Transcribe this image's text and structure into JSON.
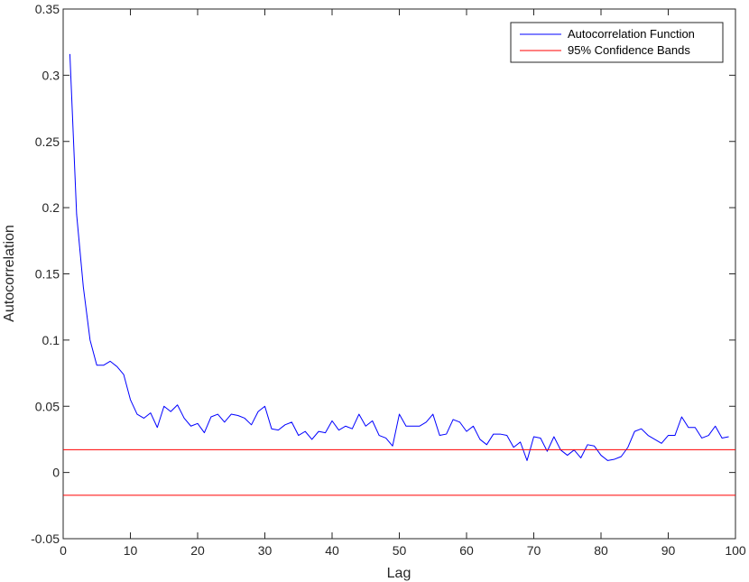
{
  "chart_data": {
    "type": "line",
    "title": "",
    "xlabel": "Lag",
    "ylabel": "Autocorrelation",
    "xlim": [
      0,
      100
    ],
    "ylim": [
      -0.05,
      0.35
    ],
    "grid": false,
    "legend_position": "top-right",
    "x_ticks": [
      0,
      10,
      20,
      30,
      40,
      50,
      60,
      70,
      80,
      90,
      100
    ],
    "x_tick_labels": [
      "0",
      "10",
      "20",
      "30",
      "40",
      "50",
      "60",
      "70",
      "80",
      "90",
      "100"
    ],
    "y_ticks": [
      -0.05,
      0,
      0.05,
      0.1,
      0.15,
      0.2,
      0.25,
      0.3,
      0.35
    ],
    "y_tick_labels": [
      "-0.05",
      "0",
      "0.05",
      "0.1",
      "0.15",
      "0.2",
      "0.25",
      "0.3",
      "0.35"
    ],
    "series": [
      {
        "name": "Autocorrelation Function",
        "color": "#0000ff",
        "x": [
          1,
          2,
          3,
          4,
          5,
          6,
          7,
          8,
          9,
          10,
          11,
          12,
          13,
          14,
          15,
          16,
          17,
          18,
          19,
          20,
          21,
          22,
          23,
          24,
          25,
          26,
          27,
          28,
          29,
          30,
          31,
          32,
          33,
          34,
          35,
          36,
          37,
          38,
          39,
          40,
          41,
          42,
          43,
          44,
          45,
          46,
          47,
          48,
          49,
          50,
          51,
          52,
          53,
          54,
          55,
          56,
          57,
          58,
          59,
          60,
          61,
          62,
          63,
          64,
          65,
          66,
          67,
          68,
          69,
          70,
          71,
          72,
          73,
          74,
          75,
          76,
          77,
          78,
          79,
          80,
          81,
          82,
          83,
          84,
          85,
          86,
          87,
          88,
          89,
          90,
          91,
          92,
          93,
          94,
          95,
          96,
          97,
          98,
          99
        ],
        "y": [
          0.316,
          0.195,
          0.14,
          0.1,
          0.081,
          0.081,
          0.084,
          0.08,
          0.074,
          0.055,
          0.044,
          0.041,
          0.045,
          0.034,
          0.05,
          0.046,
          0.051,
          0.041,
          0.035,
          0.037,
          0.03,
          0.042,
          0.044,
          0.038,
          0.044,
          0.043,
          0.041,
          0.036,
          0.046,
          0.05,
          0.033,
          0.032,
          0.036,
          0.038,
          0.028,
          0.031,
          0.025,
          0.031,
          0.03,
          0.039,
          0.032,
          0.035,
          0.033,
          0.044,
          0.035,
          0.039,
          0.028,
          0.026,
          0.02,
          0.044,
          0.035,
          0.035,
          0.035,
          0.038,
          0.044,
          0.028,
          0.029,
          0.04,
          0.038,
          0.031,
          0.035,
          0.025,
          0.021,
          0.029,
          0.029,
          0.028,
          0.019,
          0.023,
          0.009,
          0.027,
          0.026,
          0.016,
          0.027,
          0.017,
          0.013,
          0.017,
          0.011,
          0.021,
          0.02,
          0.013,
          0.009,
          0.01,
          0.012,
          0.019,
          0.031,
          0.033,
          0.028,
          0.025,
          0.022,
          0.028,
          0.028,
          0.042,
          0.034,
          0.034,
          0.026,
          0.028,
          0.035,
          0.026,
          0.027
        ]
      },
      {
        "name": "95% Confidence Bands",
        "color": "#ff0000",
        "x": [
          0,
          100
        ],
        "upper": 0.0172,
        "lower": -0.0172
      }
    ]
  }
}
